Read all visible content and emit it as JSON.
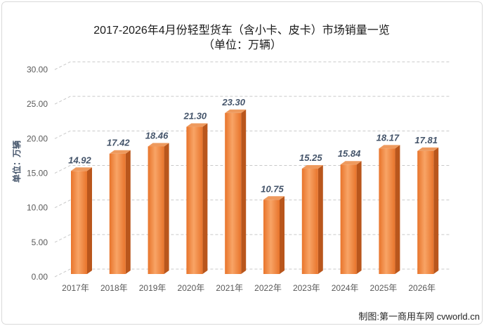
{
  "chart_data": {
    "type": "bar",
    "three_d": true,
    "title": "2017-2026年4月份轻型货车（含小卡、皮卡）市场销量一览",
    "subtitle": "（单位：万辆）",
    "xlabel": "",
    "ylabel": "单位：万辆",
    "categories": [
      "2017年",
      "2018年",
      "2019年",
      "2020年",
      "2021年",
      "2022年",
      "2023年",
      "2024年",
      "2025年",
      "2026年"
    ],
    "values": [
      14.92,
      17.42,
      18.46,
      21.3,
      23.3,
      10.75,
      15.25,
      15.84,
      18.17,
      17.81
    ],
    "data_labels": [
      "14.92",
      "17.42",
      "18.46",
      "21.30",
      "23.30",
      "10.75",
      "15.25",
      "15.84",
      "18.17",
      "17.81"
    ],
    "ylim": [
      0,
      30
    ],
    "yticks": [
      0,
      5,
      10,
      15,
      20,
      25,
      30
    ],
    "ytick_labels": [
      "0.00",
      "5.00",
      "10.00",
      "15.00",
      "20.00",
      "25.00",
      "30.00"
    ],
    "grid": true,
    "legend": "none",
    "colors": {
      "bar": "#e8742b",
      "bar_highlight": "#f8a466",
      "bar_side": "#b9561c",
      "bar_top": "#ee9a5e",
      "value_label": "#44546a",
      "axis_label": "#44546a",
      "tick_label": "#595959",
      "grid": "#c9c9c9"
    }
  },
  "footer": {
    "credit": "制图:第一商用车网 cvworld.cn"
  }
}
